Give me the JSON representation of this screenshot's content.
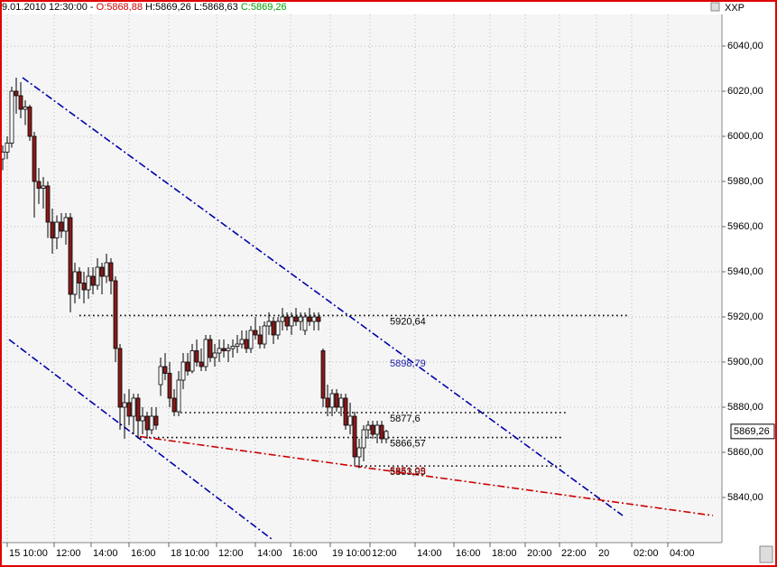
{
  "header": {
    "date": "9.01.2010 12:30:00 -",
    "open": "O:5868,88",
    "high_low": "H:5869,26 L:5868,63",
    "close": "C:5869,26",
    "symbol": "XXP"
  },
  "chart_data": {
    "type": "candlestick",
    "up_color": "#ffffff",
    "down_color": "#8b1a1a",
    "xlim": [
      -0.6,
      159.4
    ],
    "ylim": [
      5820,
      6054
    ],
    "grid": true,
    "yticks": [
      {
        "value": 5840,
        "label": "5840,00"
      },
      {
        "value": 5860,
        "label": "5860,00"
      },
      {
        "value": 5880,
        "label": "5880,00"
      },
      {
        "value": 5900,
        "label": "5900,00"
      },
      {
        "value": 5920,
        "label": "5920,00"
      },
      {
        "value": 5940,
        "label": "5940,00"
      },
      {
        "value": 5960,
        "label": "5960,00"
      },
      {
        "value": 5980,
        "label": "5980,00"
      },
      {
        "value": 6000,
        "label": "6000,00"
      },
      {
        "value": 6020,
        "label": "6020,00"
      },
      {
        "value": 6040,
        "label": "6040,00"
      }
    ],
    "xticks": [
      {
        "value": 1,
        "label": "15 10:00"
      },
      {
        "value": 11.4,
        "label": "12:00"
      },
      {
        "value": 19.6,
        "label": "14:00"
      },
      {
        "value": 28,
        "label": "16:00"
      },
      {
        "value": 36.8,
        "label": "18 10:00"
      },
      {
        "value": 47.4,
        "label": "12:00"
      },
      {
        "value": 56,
        "label": "14:00"
      },
      {
        "value": 63.8,
        "label": "16:00"
      },
      {
        "value": 72.6,
        "label": "19 10:00"
      },
      {
        "value": 81.4,
        "label": "12:00"
      },
      {
        "value": 91.4,
        "label": "14:00"
      },
      {
        "value": 100,
        "label": "16:00"
      },
      {
        "value": 108,
        "label": "18:00"
      },
      {
        "value": 115.8,
        "label": "20:00"
      },
      {
        "value": 123.4,
        "label": "22:00"
      },
      {
        "value": 131.6,
        "label": "20"
      },
      {
        "value": 139.4,
        "label": "02:00"
      },
      {
        "value": 147.4,
        "label": "04:00"
      }
    ],
    "open": [
      5990,
      5993,
      5997,
      6020,
      6018,
      6012,
      6013,
      6000,
      5980,
      5977,
      5978,
      5962,
      5955,
      5962,
      5958,
      5964,
      5930,
      5940,
      5935,
      5932,
      5938,
      5934,
      5942,
      5938,
      5944,
      5936,
      5906,
      5880,
      5882,
      5876,
      5884,
      5874,
      5876,
      5870,
      5876,
      5890,
      5898,
      5895,
      5884,
      5878,
      5892,
      5900,
      5896,
      5905,
      5900,
      5898,
      5910,
      5902,
      5904,
      5906,
      5905,
      5906,
      5907,
      5908,
      5910,
      5906,
      5914,
      5912,
      5908,
      5916,
      5918,
      5912,
      5918,
      5920,
      5916,
      5920,
      5918,
      5914,
      5920,
      5918,
      5920,
      5905,
      5884,
      5880,
      5886,
      5880,
      5884,
      5872,
      5876,
      5858,
      5862,
      5870,
      5872,
      5868,
      5872,
      5866
    ],
    "high": [
      5996,
      6000,
      6022,
      6026,
      6024,
      6016,
      6014,
      6002,
      5986,
      5982,
      5980,
      5968,
      5965,
      5966,
      5966,
      5966,
      5944,
      5942,
      5940,
      5942,
      5942,
      5946,
      5944,
      5948,
      5946,
      5938,
      5908,
      5886,
      5888,
      5886,
      5886,
      5880,
      5878,
      5880,
      5880,
      5902,
      5904,
      5900,
      5888,
      5896,
      5904,
      5904,
      5908,
      5910,
      5906,
      5912,
      5912,
      5908,
      5910,
      5910,
      5908,
      5910,
      5912,
      5914,
      5914,
      5916,
      5920,
      5916,
      5918,
      5922,
      5920,
      5920,
      5924,
      5922,
      5922,
      5924,
      5922,
      5922,
      5924,
      5922,
      5922,
      5906,
      5890,
      5888,
      5888,
      5886,
      5886,
      5882,
      5878,
      5866,
      5872,
      5874,
      5874,
      5874,
      5874,
      5870
    ],
    "low": [
      5985,
      5990,
      5995,
      6010,
      6008,
      6005,
      5998,
      5964,
      5970,
      5968,
      5955,
      5948,
      5950,
      5955,
      5952,
      5922,
      5926,
      5928,
      5926,
      5928,
      5930,
      5932,
      5930,
      5935,
      5930,
      5900,
      5870,
      5866,
      5872,
      5868,
      5866,
      5868,
      5866,
      5868,
      5870,
      5885,
      5892,
      5880,
      5876,
      5876,
      5888,
      5894,
      5895,
      5898,
      5896,
      5896,
      5900,
      5898,
      5900,
      5902,
      5900,
      5902,
      5904,
      5906,
      5904,
      5904,
      5910,
      5906,
      5906,
      5912,
      5908,
      5910,
      5914,
      5914,
      5912,
      5916,
      5914,
      5912,
      5916,
      5914,
      5914,
      5880,
      5876,
      5876,
      5878,
      5876,
      5870,
      5868,
      5854,
      5853,
      5856,
      5866,
      5866,
      5864,
      5864,
      5864
    ],
    "close": [
      5993,
      5997,
      6020,
      6018,
      6012,
      6013,
      6000,
      5980,
      5977,
      5978,
      5962,
      5955,
      5962,
      5958,
      5964,
      5930,
      5940,
      5935,
      5932,
      5938,
      5934,
      5942,
      5938,
      5944,
      5936,
      5906,
      5880,
      5882,
      5876,
      5884,
      5874,
      5876,
      5870,
      5876,
      5872,
      5898,
      5895,
      5884,
      5878,
      5892,
      5900,
      5896,
      5905,
      5900,
      5898,
      5910,
      5902,
      5904,
      5906,
      5905,
      5906,
      5907,
      5908,
      5910,
      5906,
      5914,
      5912,
      5908,
      5916,
      5918,
      5912,
      5918,
      5920,
      5916,
      5920,
      5918,
      5920,
      5920,
      5918,
      5920,
      5918,
      5884,
      5880,
      5886,
      5880,
      5884,
      5872,
      5876,
      5858,
      5862,
      5870,
      5872,
      5868,
      5872,
      5866,
      5869.26
    ],
    "last_price": {
      "value": 5869.26,
      "label": "5869,26"
    },
    "levels": [
      {
        "value": 5920.64,
        "label": "5920,64",
        "x": [
          17,
          138.8
        ]
      },
      {
        "value": 5877.6,
        "label": "5877,6",
        "x": [
          39.4,
          125.4
        ]
      },
      {
        "value": 5866.57,
        "label": "5866,57",
        "x": [
          30.4,
          124.4
        ]
      },
      {
        "value": 5853.95,
        "label": "5853,95",
        "x": [
          78.4,
          123.8
        ]
      }
    ],
    "annotations": [
      {
        "value": 5898.79,
        "label": "5898,79",
        "color": "#1a1aa8"
      },
      {
        "value": 5851.09,
        "label": "5851,09",
        "color": "#cc0000"
      }
    ],
    "trendlines": [
      {
        "color": "#0000aa",
        "x": [
          4.4,
          137.4
        ],
        "y": [
          6026,
          5832
        ]
      },
      {
        "color": "#0000aa",
        "x": [
          1.4,
          60
        ],
        "y": [
          5910,
          5821
        ]
      },
      {
        "color": "#cc0000",
        "x": [
          30.4,
          157.4
        ],
        "y": [
          5867,
          5832
        ]
      }
    ]
  }
}
